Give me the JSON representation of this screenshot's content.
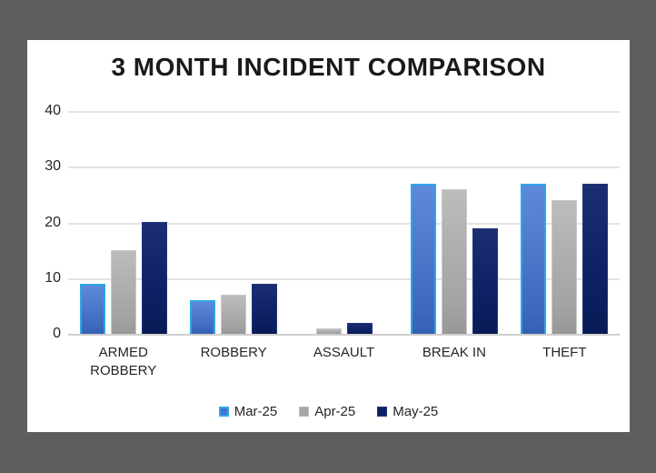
{
  "window": {
    "background_color": "#5e5e5e",
    "card_color": "#ffffff"
  },
  "chart_data": {
    "type": "bar",
    "title": "3 MONTH INCIDENT COMPARISON",
    "categories": [
      "ARMED ROBBERY",
      "ROBBERY",
      "ASSAULT",
      "BREAK IN",
      "THEFT"
    ],
    "series": [
      {
        "name": "Mar-25",
        "color": "#3f74cf",
        "border_color": "#2fa5e9",
        "values": [
          9,
          6,
          0,
          27,
          27
        ]
      },
      {
        "name": "Apr-25",
        "color": "#a6a6a6",
        "border_color": "#c9c9c9",
        "values": [
          15,
          7,
          1,
          26,
          24
        ]
      },
      {
        "name": "May-25",
        "color": "#0e2164",
        "border_color": "#23357b",
        "values": [
          20,
          9,
          2,
          19,
          27
        ]
      }
    ],
    "xlabel": "",
    "ylabel": "",
    "ylim": [
      0,
      40
    ],
    "yticks": [
      0,
      10,
      20,
      30,
      40
    ],
    "grid": true,
    "gridline_color": "#e3e3e3",
    "legend_position": "bottom-center",
    "title_color": "#1a1a1a",
    "tick_label_color": "#262626"
  }
}
